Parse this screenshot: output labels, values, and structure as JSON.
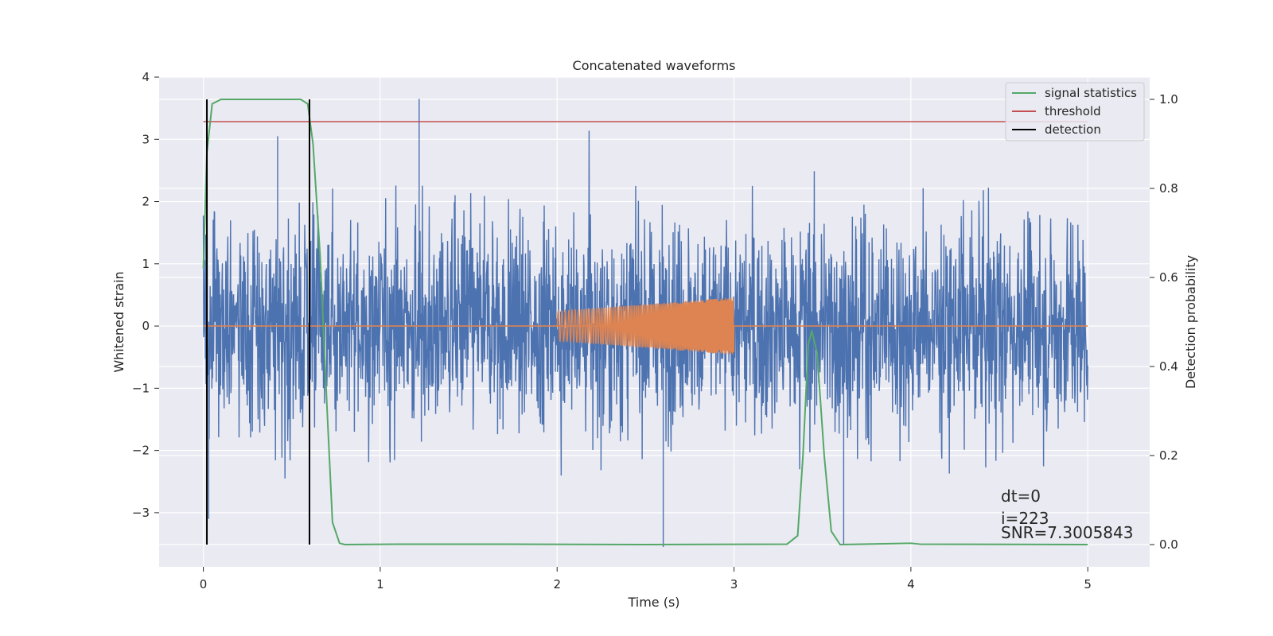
{
  "chart_data": {
    "type": "line",
    "title": "Concatenated waveforms",
    "xlabel": "Time (s)",
    "ylabel": "Whitened strain",
    "y2label": "Detection probability",
    "xlim": [
      -0.25,
      5.35
    ],
    "ylim": [
      -3.87,
      4.0
    ],
    "y2lim": [
      -0.05,
      1.05
    ],
    "xticks": [
      0,
      1,
      2,
      3,
      4,
      5
    ],
    "yticks": [
      -3,
      -2,
      -1,
      0,
      1,
      2,
      3,
      4
    ],
    "y2ticks": [
      0.0,
      0.2,
      0.4,
      0.6,
      0.8,
      1.0
    ],
    "grid": true,
    "legend_position": "top-right",
    "legend": [
      "signal statistics",
      "threshold",
      "detection"
    ],
    "colors": {
      "strain": "#4c72b0",
      "injection": "#dd8452",
      "statistics": "#55a868",
      "threshold": "#c44e52",
      "detection": "#000000",
      "background": "#eaeaf2",
      "grid": "#ffffff"
    },
    "strain": {
      "t_start": 0,
      "t_end": 5,
      "typical_range": [
        -2.0,
        2.0
      ],
      "peak_max": 3.65,
      "peak_min": -3.55
    },
    "injection": {
      "t_start": 2.0,
      "t_end": 3.0,
      "amp_start": 0.24,
      "amp_end": 0.46
    },
    "signal_statistics": {
      "points": [
        [
          0.0,
          0.62
        ],
        [
          0.02,
          0.88
        ],
        [
          0.05,
          0.99
        ],
        [
          0.1,
          1.0
        ],
        [
          0.55,
          1.0
        ],
        [
          0.59,
          0.99
        ],
        [
          0.62,
          0.9
        ],
        [
          0.66,
          0.65
        ],
        [
          0.7,
          0.3
        ],
        [
          0.73,
          0.05
        ],
        [
          0.77,
          0.003
        ],
        [
          0.8,
          0.0
        ],
        [
          1.1,
          0.001
        ],
        [
          1.6,
          0.001
        ],
        [
          2.5,
          0.0
        ],
        [
          3.3,
          0.001
        ],
        [
          3.36,
          0.02
        ],
        [
          3.39,
          0.2
        ],
        [
          3.42,
          0.45
        ],
        [
          3.44,
          0.48
        ],
        [
          3.47,
          0.43
        ],
        [
          3.51,
          0.2
        ],
        [
          3.55,
          0.03
        ],
        [
          3.6,
          0.0
        ],
        [
          4.0,
          0.003
        ],
        [
          4.05,
          0.001
        ],
        [
          5.0,
          0.0
        ]
      ]
    },
    "threshold": {
      "value": 0.95,
      "x": [
        0,
        5
      ]
    },
    "detections": [
      0.02,
      0.6
    ],
    "annotations": [
      "dt=0",
      "i=223",
      "SNR=7.3005843"
    ]
  }
}
